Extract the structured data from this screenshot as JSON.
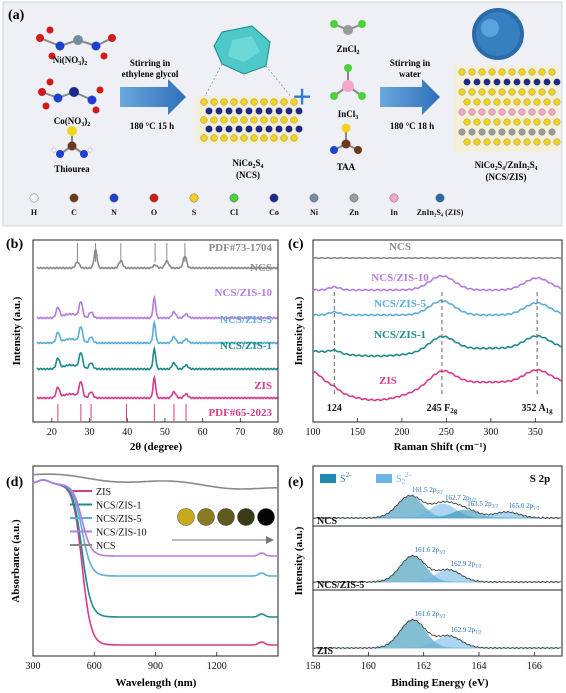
{
  "panel_a": {
    "label": "(a)",
    "reagents": [
      {
        "name": "Ni(NO",
        "sub": "3",
        "tail": ")",
        "sub2": "2"
      },
      {
        "name": "Co(NO",
        "sub": "3",
        "tail": ")",
        "sub2": "2"
      },
      {
        "name": "Thiourea"
      }
    ],
    "step1": {
      "line1": "Stirring in",
      "line2": "ethylene glycol",
      "cond": "180 °C 15 h"
    },
    "product1": {
      "line1a": "NiCo",
      "s1": "2",
      "line1b": "S",
      "s2": "4",
      "line2": "(NCS)"
    },
    "plus": "+",
    "reagents2": [
      {
        "name": "ZnCl",
        "sub": "2"
      },
      {
        "name": "InCl",
        "sub": "3"
      },
      {
        "name": "TAA"
      }
    ],
    "step2": {
      "line1": "Stirring in",
      "line2": "water",
      "cond": "180 °C 18 h"
    },
    "product2": {
      "line1": "NiCo₂S₄/ZnIn₂S₄",
      "line2": "(NCS/ZIS)"
    },
    "legend": [
      {
        "label": "H",
        "color": "#f2f2f2"
      },
      {
        "label": "C",
        "color": "#6b3a1c"
      },
      {
        "label": "N",
        "color": "#1f3fd0"
      },
      {
        "label": "O",
        "color": "#d11a1a"
      },
      {
        "label": "S",
        "color": "#f2d21a"
      },
      {
        "label": "Cl",
        "color": "#4ed03a"
      },
      {
        "label": "Co",
        "color": "#1c2a8c"
      },
      {
        "label": "Ni",
        "color": "#7a8aa0"
      },
      {
        "label": "Zn",
        "color": "#9a9a9a"
      },
      {
        "label": "In",
        "color": "#f4a6c8"
      },
      {
        "label": "ZnIn₂S₄ (ZIS)",
        "color": "#2a6aa8"
      }
    ]
  },
  "panel_b": {
    "label": "(b)",
    "chart_data": {
      "type": "line",
      "xlabel": "2θ (degree)",
      "ylabel": "Intensity (a.u.)",
      "xlim": [
        15,
        80
      ],
      "xticks": [
        20,
        30,
        40,
        50,
        60,
        70,
        80
      ],
      "series": [
        {
          "name": "PDF#73-1704",
          "color": "#8a8a8a",
          "sticks": [
            26.8,
            31.6,
            38.3,
            47.4,
            50.5,
            55.3
          ]
        },
        {
          "name": "NCS",
          "color": "#8a8a8a",
          "peaks": [
            26.8,
            31.6,
            38.3,
            47.4,
            50.5,
            55.3
          ]
        },
        {
          "name": "NCS/ZIS-10",
          "color": "#b47be0",
          "peaks": [
            21.6,
            27.7,
            30.4,
            47.2,
            52.4,
            55.6
          ]
        },
        {
          "name": "NCS/ZIS-5",
          "color": "#5aaed8",
          "peaks": [
            21.6,
            27.7,
            30.4,
            47.2,
            52.4,
            55.6
          ]
        },
        {
          "name": "NCS/ZIS-1",
          "color": "#1f8a8a",
          "peaks": [
            21.6,
            27.7,
            30.4,
            47.2,
            52.4,
            55.6
          ]
        },
        {
          "name": "ZIS",
          "color": "#d63a8a",
          "peaks": [
            21.6,
            27.7,
            30.4,
            47.2,
            52.4,
            55.6
          ]
        },
        {
          "name": "PDF#65-2023",
          "color": "#d63a8a",
          "sticks": [
            21.6,
            27.7,
            30.4,
            39.8,
            47.2,
            52.4,
            55.6
          ]
        }
      ]
    }
  },
  "panel_c": {
    "label": "(c)",
    "chart_data": {
      "type": "line",
      "xlabel": "Raman Shift (cm⁻¹)",
      "ylabel": "Intensity (a.u.)",
      "xlim": [
        100,
        380
      ],
      "xticks": [
        100,
        150,
        200,
        250,
        300,
        350
      ],
      "series": [
        {
          "name": "NCS",
          "color": "#8a8a8a"
        },
        {
          "name": "NCS/ZIS-10",
          "color": "#b47be0"
        },
        {
          "name": "NCS/ZIS-5",
          "color": "#5aaed8"
        },
        {
          "name": "NCS/ZIS-1",
          "color": "#1f8a8a"
        },
        {
          "name": "ZIS",
          "color": "#d63a8a"
        }
      ],
      "annotations": [
        {
          "x": 124,
          "text": "124"
        },
        {
          "x": 245,
          "text": "245 F",
          "sub": "2g"
        },
        {
          "x": 352,
          "text": "352 A",
          "sub": "1g"
        }
      ]
    }
  },
  "panel_d": {
    "label": "(d)",
    "chart_data": {
      "type": "line",
      "xlabel": "Wavelength (nm)",
      "ylabel": "Absorbance (a.u.)",
      "xlim": [
        300,
        1500
      ],
      "xticks": [
        300,
        600,
        900,
        1200
      ],
      "legend": "top-left",
      "series": [
        {
          "name": "ZIS",
          "color": "#d63a8a"
        },
        {
          "name": "NCS/ZIS-1",
          "color": "#1f8a8a"
        },
        {
          "name": "NCS/ZIS-5",
          "color": "#5aaed8"
        },
        {
          "name": "NCS/ZIS-10",
          "color": "#b47be0"
        },
        {
          "name": "NCS",
          "color": "#8a8a8a"
        }
      ],
      "swatches": [
        "#c8a81e",
        "#8a7a22",
        "#5e5a1e",
        "#3a3a16",
        "#050505"
      ]
    }
  },
  "panel_e": {
    "label": "(e)",
    "title": "S 2p",
    "chart_data": {
      "type": "line",
      "xlabel": "Binding Energy (eV)",
      "ylabel": "Intensity (a.u.)",
      "xlim": [
        158,
        167
      ],
      "xticks": [
        158,
        160,
        162,
        164,
        166
      ],
      "legend_items": [
        {
          "name": "S",
          "sup": "2-",
          "color": "#1f8ab0"
        },
        {
          "name": "S",
          "sub": "2",
          "sup": "2-",
          "color": "#6ab4e8"
        }
      ],
      "subpanels": [
        {
          "name": "NCS",
          "peaks": [
            {
              "x": 161.5,
              "text": "161.5 2p",
              "sub": "3/2"
            },
            {
              "x": 162.7,
              "text": "162.7 2p",
              "sub": "1/2"
            },
            {
              "x": 163.5,
              "text": "163.5 2p",
              "sub": "3/2"
            },
            {
              "x": 165.0,
              "text": "165.0 2p",
              "sub": "1/2"
            }
          ]
        },
        {
          "name": "NCS/ZIS-5",
          "peaks": [
            {
              "x": 161.6,
              "text": "161.6 2p",
              "sub": "3/2"
            },
            {
              "x": 162.9,
              "text": "162.9 2p",
              "sub": "1/2"
            }
          ]
        },
        {
          "name": "ZIS",
          "peaks": [
            {
              "x": 161.6,
              "text": "161.6 2p",
              "sub": "3/2"
            },
            {
              "x": 162.9,
              "text": "162.9 2p",
              "sub": "1/2"
            }
          ]
        }
      ]
    }
  }
}
